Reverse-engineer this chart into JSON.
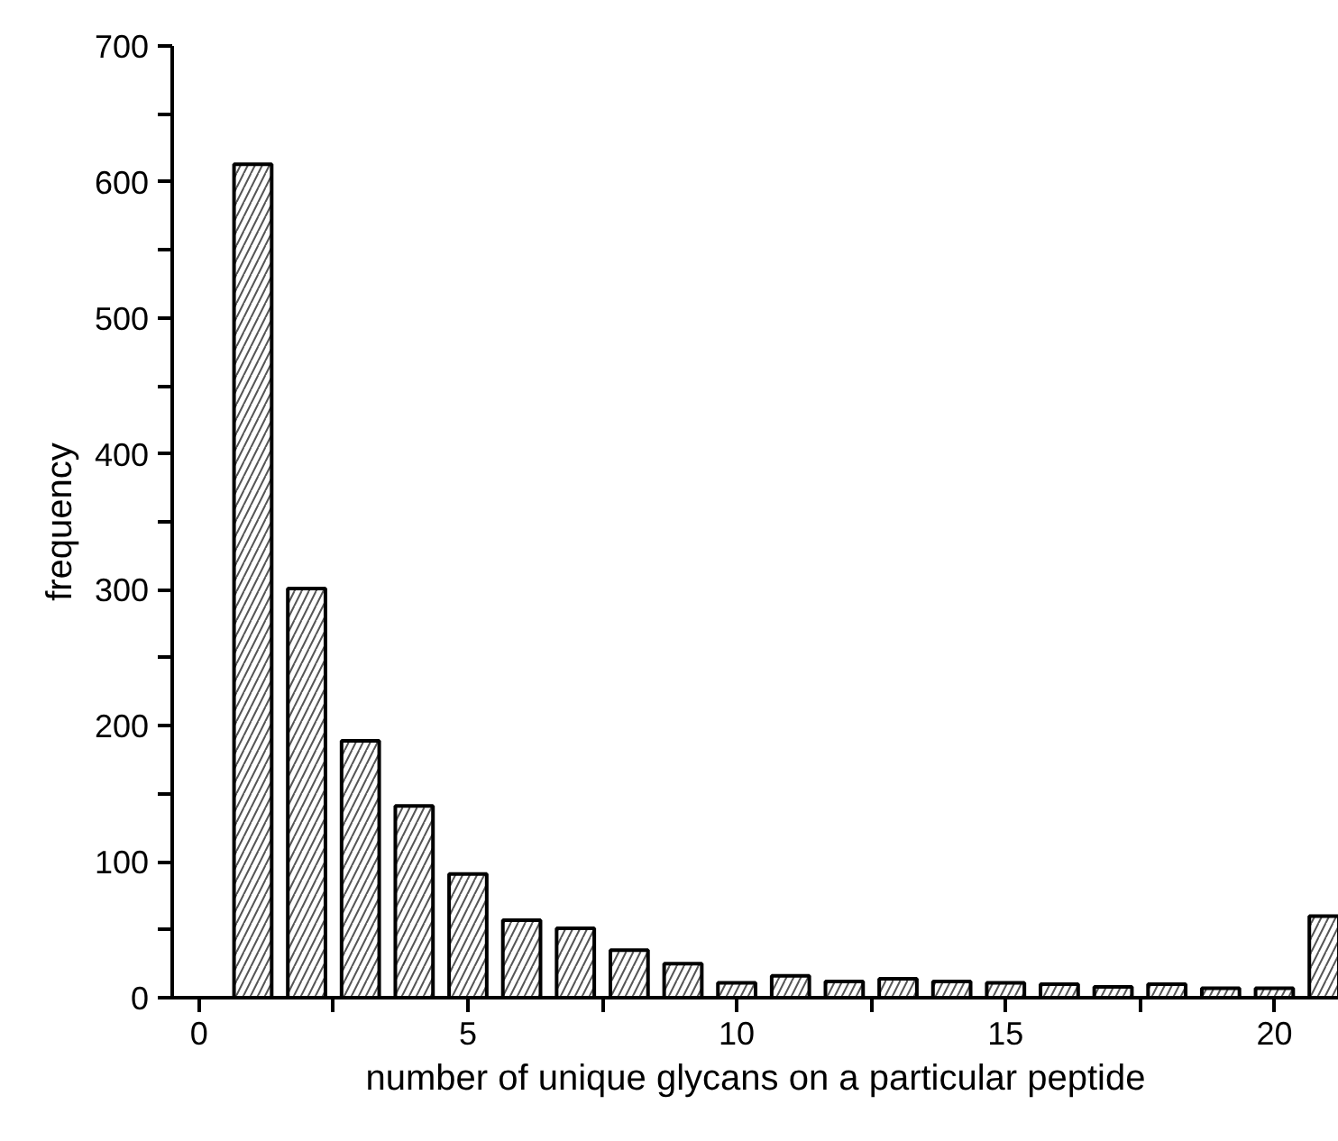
{
  "chart_data": {
    "type": "bar",
    "xlabel": "number of unique glycans on a particular peptide",
    "ylabel": "frequency",
    "x": [
      1,
      2,
      3,
      4,
      5,
      6,
      7,
      8,
      9,
      10,
      11,
      12,
      13,
      14,
      15,
      16,
      17,
      18,
      19,
      20,
      21
    ],
    "values": [
      613,
      301,
      189,
      141,
      91,
      57,
      51,
      35,
      25,
      11,
      16,
      12,
      14,
      12,
      11,
      10,
      8,
      10,
      7,
      7,
      60
    ],
    "color": "#ffffff",
    "xlim": [
      -0.5,
      21.2
    ],
    "ylim": [
      0,
      700
    ],
    "xticks": [
      0,
      {
        "value": 2.5,
        "label": null
      },
      5,
      {
        "value": 7.5,
        "label": null
      },
      10,
      {
        "value": 12.5,
        "label": null
      },
      15,
      {
        "value": 17.5,
        "label": null
      },
      20
    ],
    "yticks": [
      0,
      {
        "value": 50,
        "label": null
      },
      100,
      {
        "value": 150,
        "label": null
      },
      200,
      {
        "value": 250,
        "label": null
      },
      300,
      {
        "value": 350,
        "label": null
      },
      400,
      {
        "value": 450,
        "label": null
      },
      500,
      {
        "value": 550,
        "label": null
      },
      600,
      {
        "value": 650,
        "label": null
      },
      700
    ],
    "grid": false
  }
}
